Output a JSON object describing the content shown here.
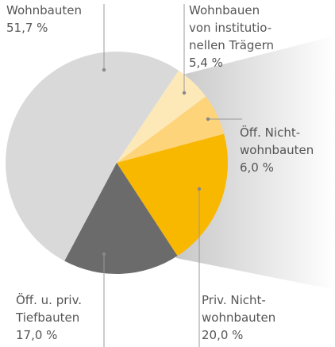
{
  "chart_data": {
    "type": "pie",
    "categories": [
      "Wohnbauten",
      "Wohnbauen\nvon institutio-\nnellen Trägern",
      "Öff. Nicht-\nwohnbauten",
      "Priv. Nicht-\nwohnbauten",
      "Öff. u. priv.\nTiefbauten"
    ],
    "values": [
      51.7,
      5.4,
      6.0,
      20.0,
      17.0
    ],
    "value_labels": [
      "51,7 %",
      "5,4 %",
      "6,0 %",
      "20,0 %",
      "17,0 %"
    ],
    "colors": [
      "#d9d9d9",
      "#fde9b8",
      "#fdd47a",
      "#f9b800",
      "#6b6b6b"
    ]
  }
}
